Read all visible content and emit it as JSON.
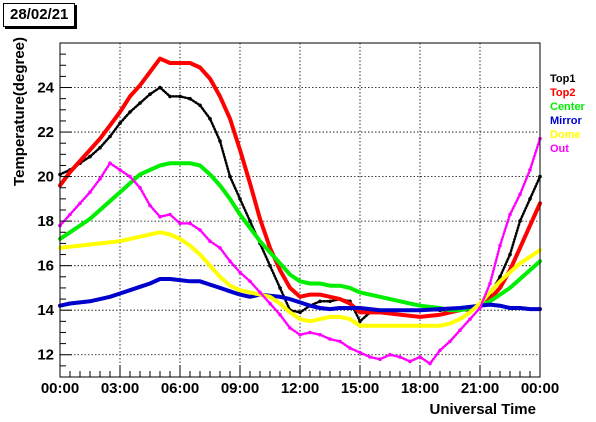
{
  "header": {
    "date_label": "28/02/21"
  },
  "chart_data": {
    "type": "line",
    "title": "",
    "xlabel": "Universal Time",
    "ylabel": "Temperature(degree)",
    "xlim": [
      0,
      24
    ],
    "ylim": [
      11,
      26
    ],
    "grid": true,
    "legend_placement": "right",
    "x_ticks": [
      0,
      3,
      6,
      9,
      12,
      15,
      18,
      21,
      24
    ],
    "x_tick_labels": [
      "00:00",
      "03:00",
      "06:00",
      "09:00",
      "12:00",
      "15:00",
      "18:00",
      "21:00",
      "00:00"
    ],
    "y_ticks": [
      12,
      14,
      16,
      18,
      20,
      22,
      24
    ],
    "y_tick_labels": [
      "12",
      "14",
      "16",
      "18",
      "20",
      "22",
      "24"
    ],
    "series": [
      {
        "name": "Top1",
        "color": "#000000",
        "style": "dots",
        "x": [
          0,
          0.5,
          1,
          1.5,
          2,
          2.5,
          3,
          3.5,
          4,
          4.5,
          5,
          5.5,
          6,
          6.5,
          7,
          7.5,
          8,
          8.5,
          9,
          9.5,
          10,
          10.5,
          11,
          11.5,
          12,
          12.5,
          13,
          13.5,
          14,
          14.5,
          15,
          15.5,
          16,
          17,
          18,
          19,
          20,
          20.5,
          21,
          21.5,
          22,
          22.5,
          23,
          23.5,
          24
        ],
        "y": [
          20.1,
          20.3,
          20.6,
          20.9,
          21.3,
          21.8,
          22.4,
          22.9,
          23.3,
          23.7,
          24.0,
          23.6,
          23.6,
          23.5,
          23.2,
          22.6,
          21.6,
          20.0,
          19.0,
          18.0,
          17.0,
          16.0,
          15.0,
          14.0,
          13.9,
          14.2,
          14.4,
          14.4,
          14.5,
          14.4,
          13.5,
          13.9,
          14.0,
          14.0,
          14.0,
          14.0,
          14.0,
          14.0,
          14.2,
          14.7,
          15.5,
          16.5,
          18.0,
          19.0,
          20.0
        ]
      },
      {
        "name": "Top2",
        "color": "#ff0000",
        "style": "line",
        "x": [
          0,
          0.5,
          1,
          1.5,
          2,
          2.5,
          3,
          3.5,
          4,
          4.5,
          5,
          5.5,
          6,
          6.5,
          7,
          7.5,
          8,
          8.5,
          9,
          9.5,
          10,
          10.5,
          11,
          11.5,
          12,
          12.5,
          13,
          13.5,
          14,
          14.5,
          15,
          16,
          17,
          18,
          19,
          19.5,
          20,
          20.5,
          21,
          21.5,
          22,
          22.5,
          23,
          23.5,
          24
        ],
        "y": [
          19.6,
          20.2,
          20.7,
          21.2,
          21.7,
          22.3,
          22.9,
          23.6,
          24.1,
          24.7,
          25.3,
          25.1,
          25.1,
          25.1,
          24.9,
          24.4,
          23.6,
          22.6,
          21.2,
          19.7,
          18.1,
          16.8,
          15.8,
          15.0,
          14.6,
          14.7,
          14.7,
          14.6,
          14.5,
          14.3,
          13.9,
          13.9,
          13.8,
          13.7,
          13.8,
          13.9,
          14.0,
          14.1,
          14.2,
          14.5,
          15.0,
          15.8,
          16.8,
          17.8,
          18.8
        ]
      },
      {
        "name": "Center",
        "color": "#00ee00",
        "style": "line",
        "x": [
          0,
          0.5,
          1,
          1.5,
          2,
          2.5,
          3,
          3.5,
          4,
          4.5,
          5,
          5.5,
          6,
          6.5,
          7,
          7.5,
          8,
          8.5,
          9,
          9.5,
          10,
          10.5,
          11,
          11.5,
          12,
          12.5,
          13,
          13.5,
          14,
          14.5,
          15,
          16,
          17,
          18,
          19,
          19.5,
          20,
          20.5,
          21,
          21.5,
          22,
          22.5,
          23,
          23.5,
          24
        ],
        "y": [
          17.2,
          17.5,
          17.8,
          18.1,
          18.5,
          18.9,
          19.3,
          19.7,
          20.1,
          20.3,
          20.5,
          20.6,
          20.6,
          20.6,
          20.5,
          20.1,
          19.6,
          19.0,
          18.3,
          17.7,
          17.1,
          16.6,
          16.1,
          15.6,
          15.3,
          15.2,
          15.2,
          15.1,
          15.1,
          15.0,
          14.8,
          14.6,
          14.4,
          14.2,
          14.1,
          14.0,
          14.0,
          14.1,
          14.2,
          14.4,
          14.7,
          15.0,
          15.4,
          15.8,
          16.2
        ]
      },
      {
        "name": "Mirror",
        "color": "#0000cc",
        "style": "line",
        "x": [
          0,
          0.5,
          1,
          1.5,
          2,
          2.5,
          3,
          3.5,
          4,
          4.5,
          5,
          5.5,
          6,
          6.5,
          7,
          7.5,
          8,
          8.5,
          9,
          9.5,
          10,
          10.5,
          11,
          11.5,
          12,
          12.5,
          13,
          13.5,
          14,
          14.5,
          15,
          16,
          17,
          18,
          19,
          20,
          21,
          21.5,
          22,
          22.5,
          23,
          23.5,
          24
        ],
        "y": [
          14.2,
          14.3,
          14.35,
          14.4,
          14.5,
          14.6,
          14.75,
          14.9,
          15.05,
          15.2,
          15.4,
          15.4,
          15.35,
          15.3,
          15.3,
          15.15,
          15.0,
          14.85,
          14.7,
          14.6,
          14.7,
          14.65,
          14.6,
          14.5,
          14.35,
          14.2,
          14.1,
          14.05,
          14.1,
          14.1,
          14.1,
          14.0,
          14.0,
          14.0,
          14.05,
          14.1,
          14.2,
          14.25,
          14.2,
          14.1,
          14.1,
          14.05,
          14.05
        ]
      },
      {
        "name": "Dome",
        "color": "#ffff00",
        "style": "line",
        "x": [
          0,
          0.5,
          1,
          1.5,
          2,
          2.5,
          3,
          3.5,
          4,
          4.5,
          5,
          5.5,
          6,
          6.5,
          7,
          7.5,
          8,
          8.5,
          9,
          9.5,
          10,
          10.5,
          11,
          11.5,
          12,
          12.5,
          13,
          13.5,
          14,
          14.5,
          15,
          16,
          17,
          18,
          19,
          19.5,
          20,
          20.5,
          21,
          21.5,
          22,
          22.5,
          23,
          23.5,
          24
        ],
        "y": [
          16.8,
          16.85,
          16.9,
          16.95,
          17.0,
          17.05,
          17.1,
          17.2,
          17.3,
          17.4,
          17.5,
          17.4,
          17.2,
          16.9,
          16.5,
          16.0,
          15.5,
          15.1,
          14.9,
          14.8,
          14.7,
          14.6,
          14.3,
          13.9,
          13.6,
          13.5,
          13.6,
          13.7,
          13.7,
          13.6,
          13.3,
          13.3,
          13.3,
          13.3,
          13.3,
          13.4,
          13.6,
          13.9,
          14.3,
          14.8,
          15.3,
          15.7,
          16.1,
          16.4,
          16.7
        ]
      },
      {
        "name": "Out",
        "color": "#ff00ff",
        "style": "dots",
        "x": [
          0,
          0.5,
          1,
          1.5,
          2,
          2.5,
          3,
          3.5,
          4,
          4.5,
          5,
          5.5,
          6,
          6.5,
          7,
          7.5,
          8,
          8.5,
          9,
          9.5,
          10,
          10.5,
          11,
          11.5,
          12,
          12.5,
          13,
          13.5,
          14,
          14.5,
          15,
          15.5,
          16,
          16.5,
          17,
          17.5,
          18,
          18.5,
          19,
          19.5,
          20,
          20.5,
          21,
          21.5,
          22,
          22.5,
          23,
          23.5,
          24
        ],
        "y": [
          17.8,
          18.3,
          18.8,
          19.3,
          19.9,
          20.6,
          20.3,
          20.0,
          19.5,
          18.7,
          18.2,
          18.3,
          17.9,
          17.9,
          17.6,
          17.1,
          16.8,
          16.2,
          15.7,
          15.3,
          14.8,
          14.3,
          13.8,
          13.2,
          12.9,
          13.0,
          12.9,
          12.7,
          12.6,
          12.3,
          12.1,
          11.9,
          11.8,
          12.0,
          11.9,
          11.7,
          11.9,
          11.6,
          12.2,
          12.6,
          13.1,
          13.6,
          14.1,
          15.2,
          16.9,
          18.3,
          19.2,
          20.3,
          21.7
        ]
      }
    ]
  }
}
